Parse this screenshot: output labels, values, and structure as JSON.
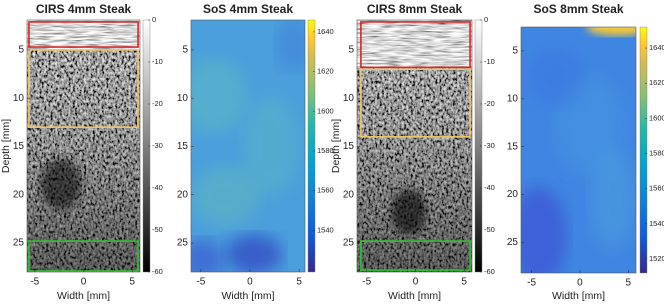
{
  "chart_data": [
    {
      "type": "ultrasound",
      "title": "CIRS 4mm Steak",
      "xlabel": "Width [mm]",
      "ylabel": "Depth [mm]",
      "xlim": [
        -5.8,
        5.8
      ],
      "ylim": [
        1.9,
        28
      ],
      "xticks": [
        -5,
        0,
        5
      ],
      "yticks": [
        5,
        10,
        15,
        20,
        25
      ],
      "colormap": "gray",
      "clim": [
        -60,
        0
      ],
      "cticks": [
        0,
        -10,
        -20,
        -30,
        -40,
        -50,
        -60
      ],
      "boxes": [
        {
          "color": "#d62828",
          "xlim": [
            -5.6,
            5.6
          ],
          "ylim": [
            2.1,
            4.7
          ]
        },
        {
          "color": "#f2c46a",
          "xlim": [
            -5.6,
            5.6
          ],
          "ylim": [
            5.0,
            13.0
          ]
        },
        {
          "color": "#2ec42e",
          "xlim": [
            -5.6,
            5.6
          ],
          "ylim": [
            24.8,
            27.9
          ]
        }
      ]
    },
    {
      "type": "sos",
      "title": "SoS 4mm Steak",
      "xlabel": "Width [mm]",
      "xlim": [
        -6,
        5.6
      ],
      "ylim": [
        1.9,
        28
      ],
      "xticks": [
        -5,
        0,
        5
      ],
      "yticks": [
        5,
        10,
        15,
        20,
        25
      ],
      "colormap": "parula",
      "clim": [
        1519,
        1646
      ],
      "cticks": [
        1640,
        1620,
        1600,
        1580,
        1560,
        1540
      ]
    },
    {
      "type": "ultrasound",
      "title": "CIRS 8mm Steak",
      "xlabel": "Width [mm]",
      "ylabel": "Depth [mm]",
      "xlim": [
        -6,
        5.8
      ],
      "ylim": [
        1.9,
        28
      ],
      "xticks": [
        -5,
        0,
        5
      ],
      "yticks": [
        5,
        10,
        15,
        20,
        25
      ],
      "colormap": "gray",
      "clim": [
        -60,
        0
      ],
      "cticks": [
        0,
        -10,
        -20,
        -30,
        -40,
        -50,
        -60
      ],
      "boxes": [
        {
          "color": "#d62828",
          "xlim": [
            -5.6,
            5.6
          ],
          "ylim": [
            2.1,
            6.8
          ]
        },
        {
          "color": "#f2c46a",
          "xlim": [
            -5.6,
            5.6
          ],
          "ylim": [
            7.0,
            14.0
          ]
        },
        {
          "color": "#2ec42e",
          "xlim": [
            -5.6,
            5.6
          ],
          "ylim": [
            24.8,
            27.8
          ]
        }
      ]
    },
    {
      "type": "sos",
      "title": "SoS 8mm Steak",
      "xlabel": "Width [mm]",
      "xlim": [
        -6.1,
        5.8
      ],
      "ylim": [
        2.5,
        28.2
      ],
      "xticks": [
        -5,
        0,
        5
      ],
      "yticks": [
        5,
        10,
        15,
        20,
        25
      ],
      "colormap": "parula",
      "clim": [
        1512,
        1652
      ],
      "cticks": [
        1640,
        1620,
        1600,
        1580,
        1560,
        1540,
        1520
      ]
    }
  ]
}
